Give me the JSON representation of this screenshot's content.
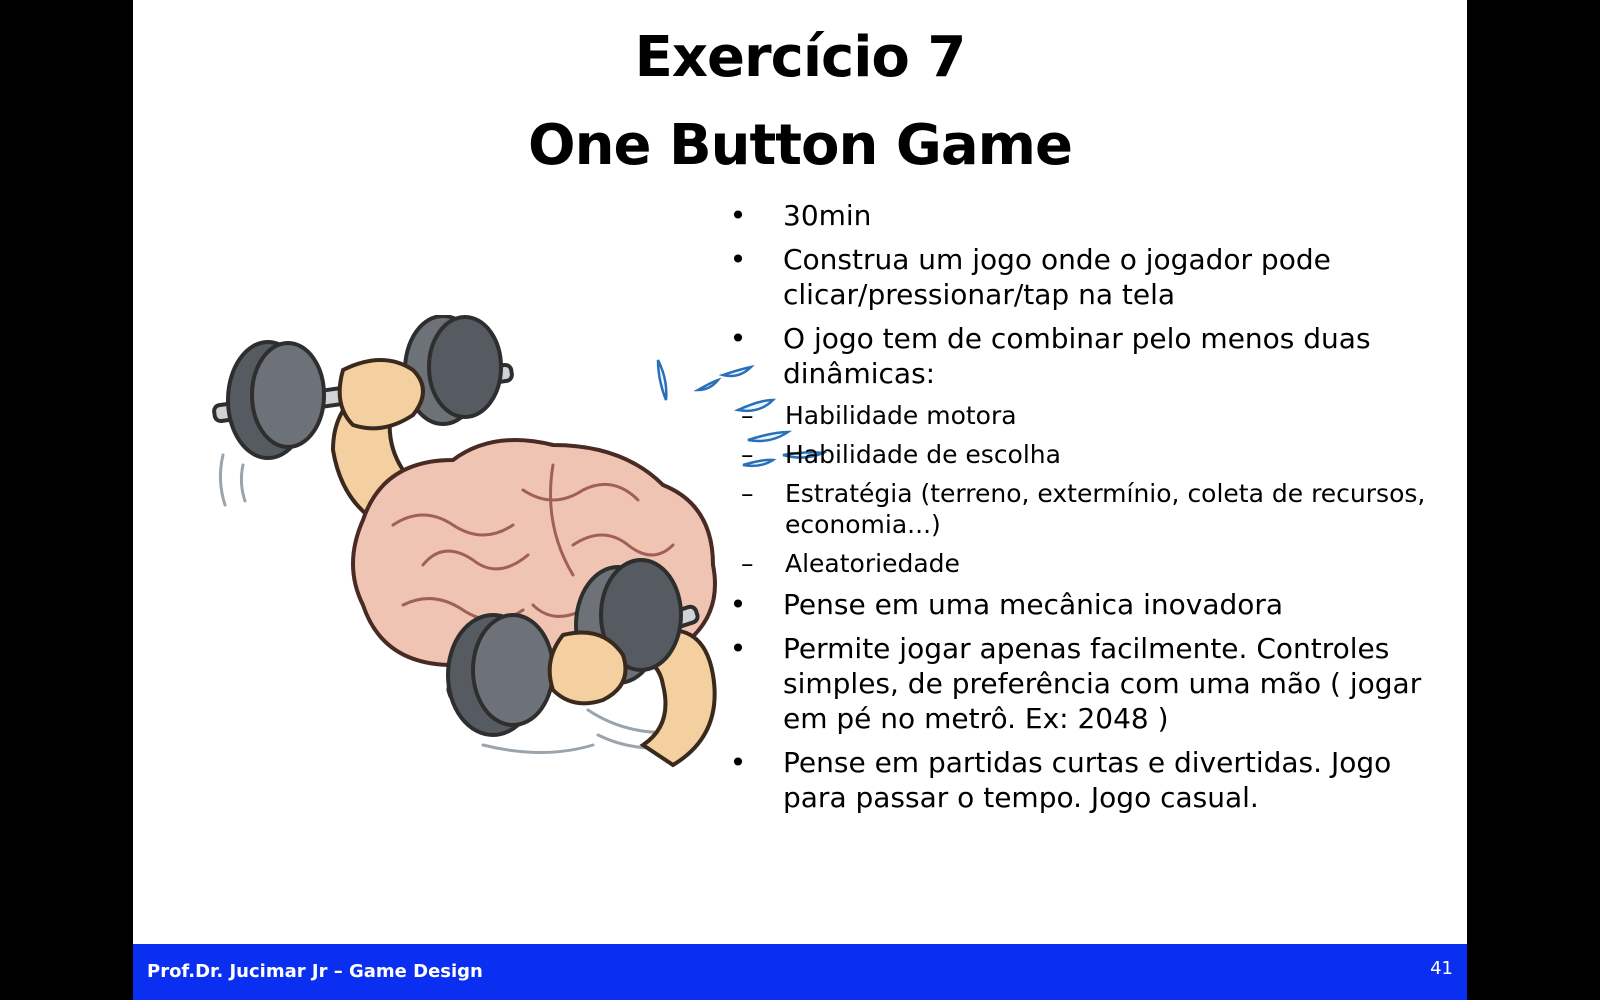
{
  "slide": {
    "title_line1": "Exercício 7",
    "title_line2": "One Button Game",
    "illustration_name": "brain-lifting-dumbbells-icon",
    "bullets": [
      {
        "symbol": "•",
        "text": "30min"
      },
      {
        "symbol": "•",
        "text": "Construa um jogo onde o jogador pode clicar/pressionar/tap na tela"
      },
      {
        "symbol": "•",
        "text": "O jogo tem de combinar pelo menos duas dinâmicas:",
        "subitems": [
          {
            "symbol": "–",
            "text": "Habilidade motora"
          },
          {
            "symbol": "–",
            "text": "Habilidade de escolha"
          },
          {
            "symbol": "–",
            "text": "Estratégia (terreno, extermínio, coleta de recursos, economia...)"
          },
          {
            "symbol": "–",
            "text": "Aleatoriedade"
          }
        ]
      },
      {
        "symbol": "•",
        "text": "Pense em uma mecânica inovadora"
      },
      {
        "symbol": "•",
        "text": "Permite jogar apenas facilmente. Controles simples, de preferência com uma mão ( jogar em pé no metrô. Ex: 2048 )"
      },
      {
        "symbol": "•",
        "text": "Pense em partidas curtas e divertidas. Jogo para passar o tempo. Jogo casual."
      }
    ]
  },
  "footer": {
    "text": "Prof.Dr. Jucimar Jr – Game Design",
    "page_number": "41"
  },
  "colors": {
    "footer_bg": "#0a2ff0",
    "background": "#000000",
    "slide_bg": "#ffffff"
  }
}
